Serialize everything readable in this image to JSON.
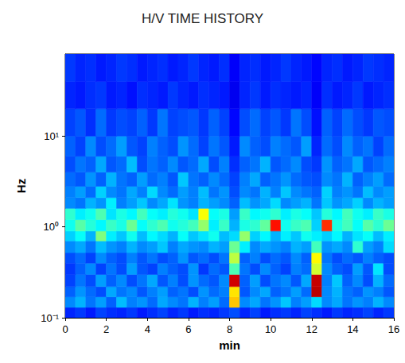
{
  "chart_data": {
    "type": "heatmap",
    "title": "H/V TIME HISTORY",
    "x_label": "min",
    "y_label": "Hz",
    "log": "y",
    "grid": false,
    "color": "jet",
    "xlim": [
      0,
      16
    ],
    "xticks": [
      0,
      2,
      4,
      6,
      8,
      10,
      12,
      14,
      16
    ],
    "ylim": [
      0.1,
      80
    ],
    "yticks": [
      {
        "value": 0.1,
        "label": "10⁻¹"
      },
      {
        "value": 1,
        "label": "10⁰"
      },
      {
        "value": 10,
        "label": "10¹"
      }
    ],
    "color_range": [
      0,
      10
    ],
    "x_bins": [
      0,
      0.5,
      1,
      1.5,
      2,
      2.5,
      3,
      3.5,
      4,
      4.5,
      5,
      5.5,
      6,
      6.5,
      7,
      7.5,
      8,
      8.5,
      9,
      9.5,
      10,
      10.5,
      11,
      11.5,
      12,
      12.5,
      13,
      13.5,
      14,
      14.5,
      15,
      15.5,
      16
    ],
    "y_bins": [
      0.1,
      0.13,
      0.17,
      0.22,
      0.3,
      0.4,
      0.52,
      0.7,
      0.9,
      1.2,
      1.6,
      2.1,
      2.8,
      4,
      6,
      10,
      20,
      40,
      80
    ],
    "cells": [
      [
        1.6,
        1.8,
        1.5,
        1.9,
        1.7,
        1.6,
        1.8,
        1.5,
        1.7,
        1.9,
        1.6,
        1.8,
        1.5,
        1.7,
        1.6,
        1.8,
        2.0,
        1.6,
        1.9,
        1.5,
        1.7,
        1.8,
        1.6,
        1.9,
        1.7,
        1.5,
        1.8,
        1.6,
        1.7,
        1.9,
        1.6,
        1.8
      ],
      [
        2.6,
        3.0,
        2.4,
        2.8,
        2.2,
        3.1,
        2.5,
        2.7,
        2.3,
        2.9,
        2.6,
        2.4,
        3.0,
        2.5,
        2.8,
        2.3,
        6.8,
        2.6,
        2.9,
        2.4,
        2.7,
        3.2,
        2.5,
        2.8,
        3.4,
        2.6,
        2.9,
        2.4,
        2.7,
        2.5,
        3.0,
        2.6
      ],
      [
        2.2,
        2.7,
        2.3,
        2.0,
        2.9,
        2.4,
        2.6,
        2.1,
        2.5,
        2.8,
        2.2,
        2.4,
        2.0,
        2.7,
        2.3,
        2.5,
        6.5,
        2.1,
        2.6,
        2.9,
        2.2,
        2.4,
        2.8,
        2.3,
        9.4,
        2.6,
        3.0,
        2.4,
        2.2,
        2.7,
        2.5,
        2.1
      ],
      [
        1.9,
        2.4,
        2.0,
        2.8,
        2.2,
        2.6,
        2.0,
        2.4,
        2.9,
        2.1,
        2.5,
        2.0,
        2.7,
        2.3,
        2.1,
        2.6,
        9.2,
        2.2,
        2.8,
        2.0,
        2.4,
        2.6,
        2.1,
        2.9,
        9.3,
        2.5,
        3.2,
        2.2,
        2.6,
        2.0,
        3.0,
        2.3
      ],
      [
        1.8,
        2.2,
        2.6,
        1.9,
        2.4,
        2.0,
        2.8,
        2.1,
        1.9,
        2.5,
        2.2,
        2.0,
        2.7,
        1.8,
        2.3,
        2.1,
        4.5,
        2.4,
        2.0,
        2.6,
        2.2,
        1.9,
        2.5,
        2.3,
        5.8,
        2.6,
        2.2,
        2.0,
        2.8,
        2.1,
        3.5,
        2.0
      ],
      [
        2.0,
        2.3,
        1.9,
        2.6,
        2.2,
        2.0,
        2.5,
        2.1,
        2.4,
        2.0,
        2.2,
        2.7,
        2.1,
        2.3,
        2.0,
        2.4,
        5.6,
        2.2,
        2.5,
        2.0,
        2.3,
        2.1,
        2.6,
        2.2,
        6.3,
        2.4,
        2.0,
        2.3,
        2.1,
        2.5,
        2.2,
        2.0
      ],
      [
        2.6,
        2.9,
        2.4,
        3.1,
        2.7,
        2.5,
        3.0,
        2.6,
        2.8,
        3.2,
        2.5,
        2.9,
        2.7,
        2.6,
        3.0,
        2.8,
        4.8,
        3.6,
        2.6,
        2.9,
        2.7,
        2.5,
        3.0,
        2.8,
        4.4,
        2.7,
        2.9,
        2.6,
        4.2,
        2.8,
        2.5,
        3.4
      ],
      [
        3.3,
        3.8,
        3.0,
        5.0,
        3.6,
        3.2,
        3.9,
        3.1,
        3.7,
        3.4,
        3.0,
        3.8,
        3.2,
        3.5,
        3.9,
        3.1,
        3.4,
        5.2,
        3.3,
        3.7,
        3.0,
        3.6,
        3.2,
        3.9,
        3.6,
        3.3,
        3.7,
        3.0,
        3.5,
        3.8,
        3.1,
        3.6
      ],
      [
        3.9,
        4.6,
        4.1,
        3.7,
        4.3,
        4.0,
        4.8,
        3.8,
        4.2,
        4.5,
        3.9,
        4.1,
        4.4,
        5.2,
        3.6,
        4.3,
        3.0,
        4.0,
        4.2,
        4.7,
        8.6,
        3.9,
        4.3,
        4.5,
        3.3,
        8.3,
        4.0,
        4.4,
        3.8,
        4.6,
        4.2,
        4.8
      ],
      [
        4.2,
        3.6,
        3.9,
        4.5,
        3.5,
        4.0,
        3.7,
        4.4,
        3.8,
        3.6,
        4.1,
        3.9,
        3.5,
        6.2,
        3.8,
        4.0,
        2.8,
        4.3,
        3.7,
        3.9,
        4.2,
        3.6,
        4.0,
        3.8,
        3.2,
        4.1,
        3.7,
        4.4,
        3.9,
        3.6,
        4.3,
        4.0
      ],
      [
        2.6,
        2.4,
        3.0,
        2.7,
        3.6,
        2.5,
        2.8,
        3.2,
        2.6,
        2.9,
        3.5,
        2.7,
        2.5,
        3.0,
        2.8,
        2.6,
        2.2,
        3.1,
        2.7,
        2.9,
        3.4,
        2.6,
        2.8,
        3.0,
        2.4,
        3.2,
        2.7,
        2.9,
        3.3,
        2.6,
        3.0,
        2.8
      ],
      [
        2.5,
        2.8,
        2.3,
        3.3,
        2.6,
        2.4,
        2.9,
        2.5,
        3.4,
        2.6,
        2.3,
        2.8,
        2.5,
        3.1,
        2.4,
        2.7,
        2.0,
        2.6,
        2.4,
        3.0,
        2.5,
        3.2,
        2.6,
        2.4,
        2.2,
        3.3,
        2.5,
        2.7,
        2.4,
        3.1,
        2.6,
        2.8
      ],
      [
        2.3,
        2.1,
        2.7,
        2.2,
        3.0,
        2.4,
        2.2,
        2.8,
        2.3,
        2.5,
        2.1,
        3.2,
        2.4,
        2.2,
        2.6,
        2.3,
        1.9,
        2.5,
        2.9,
        2.2,
        2.4,
        2.7,
        2.3,
        2.1,
        2.0,
        2.6,
        2.4,
        3.0,
        2.2,
        2.5,
        2.8,
        2.3
      ],
      [
        2.0,
        2.4,
        2.2,
        2.9,
        2.1,
        2.3,
        3.1,
        2.0,
        2.4,
        2.2,
        2.6,
        2.1,
        2.3,
        2.9,
        2.0,
        2.5,
        1.7,
        2.2,
        2.4,
        3.0,
        2.1,
        2.3,
        2.6,
        2.0,
        1.8,
        2.7,
        2.2,
        2.4,
        2.9,
        2.1,
        2.3,
        2.5
      ],
      [
        2.2,
        1.9,
        2.6,
        2.0,
        2.3,
        2.8,
        2.1,
        1.9,
        2.5,
        2.2,
        2.0,
        2.7,
        2.3,
        1.9,
        2.4,
        2.1,
        1.5,
        2.6,
        2.2,
        2.0,
        2.5,
        2.3,
        2.1,
        2.8,
        1.6,
        2.3,
        2.0,
        2.6,
        2.2,
        2.4,
        1.9,
        2.3
      ],
      [
        1.9,
        2.1,
        1.7,
        2.3,
        1.8,
        2.0,
        1.9,
        2.2,
        1.8,
        2.4,
        1.9,
        2.0,
        2.1,
        1.8,
        2.2,
        1.9,
        1.3,
        2.0,
        2.3,
        1.9,
        2.1,
        1.8,
        2.4,
        2.0,
        1.4,
        2.2,
        1.9,
        2.3,
        2.0,
        1.8,
        2.1,
        2.0
      ],
      [
        1.6,
        1.5,
        1.7,
        1.8,
        1.5,
        1.6,
        1.4,
        1.7,
        1.6,
        1.5,
        1.8,
        1.6,
        1.5,
        1.7,
        1.6,
        1.5,
        1.1,
        1.6,
        1.8,
        1.5,
        1.7,
        1.6,
        1.5,
        1.6,
        1.2,
        1.7,
        1.5,
        1.6,
        1.8,
        1.5,
        1.6,
        1.7
      ],
      [
        1.8,
        1.6,
        1.7,
        1.5,
        1.6,
        1.8,
        1.7,
        1.5,
        1.6,
        1.7,
        1.5,
        1.6,
        1.8,
        1.6,
        1.5,
        1.7,
        1.2,
        1.6,
        1.7,
        1.5,
        1.6,
        1.8,
        1.6,
        1.5,
        1.3,
        1.6,
        1.7,
        1.5,
        1.6,
        1.8,
        1.7,
        1.6
      ]
    ]
  }
}
